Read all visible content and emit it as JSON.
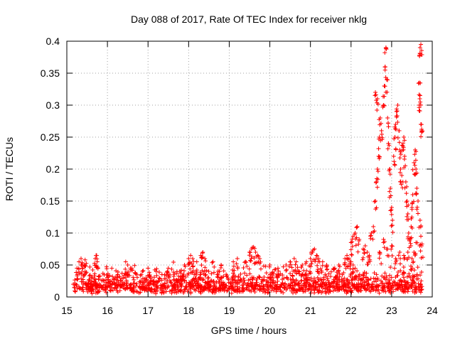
{
  "chart_data": {
    "type": "scatter",
    "title": "Day 088 of 2017, Rate Of TEC Index for receiver nklg",
    "xlabel": "GPS time / hours",
    "ylabel": "ROTI / TECUs",
    "xlim": [
      15,
      24
    ],
    "ylim": [
      0,
      0.4
    ],
    "xticks": [
      15,
      16,
      17,
      18,
      19,
      20,
      21,
      22,
      23,
      24
    ],
    "yticks": [
      0,
      0.05,
      0.1,
      0.15,
      0.2,
      0.25,
      0.3,
      0.35,
      0.4
    ],
    "xtick_labels": [
      "15",
      "16",
      "17",
      "18",
      "19",
      "20",
      "21",
      "22",
      "23",
      "24"
    ],
    "ytick_labels": [
      "0",
      "0.05",
      "0.1",
      "0.15",
      "0.2",
      "0.25",
      "0.3",
      "0.35",
      "0.4"
    ],
    "grid": true,
    "marker": "+",
    "series": [
      {
        "name": "ROTI",
        "color": "#ff0000",
        "x_range": [
          15.15,
          23.75
        ],
        "background_band": [
          0.005,
          0.045
        ],
        "points": [
          [
            15.25,
            0.045
          ],
          [
            15.3,
            0.055
          ],
          [
            15.35,
            0.06
          ],
          [
            15.4,
            0.05
          ],
          [
            15.45,
            0.058
          ],
          [
            15.7,
            0.06
          ],
          [
            15.72,
            0.065
          ],
          [
            15.75,
            0.055
          ],
          [
            16.45,
            0.055
          ],
          [
            16.5,
            0.05
          ],
          [
            16.6,
            0.045
          ],
          [
            17.0,
            0.045
          ],
          [
            17.2,
            0.04
          ],
          [
            17.5,
            0.045
          ],
          [
            17.9,
            0.05
          ],
          [
            18.0,
            0.06
          ],
          [
            18.05,
            0.065
          ],
          [
            18.1,
            0.06
          ],
          [
            18.2,
            0.055
          ],
          [
            18.3,
            0.065
          ],
          [
            18.35,
            0.07
          ],
          [
            18.4,
            0.06
          ],
          [
            18.6,
            0.055
          ],
          [
            18.8,
            0.05
          ],
          [
            19.1,
            0.055
          ],
          [
            19.2,
            0.06
          ],
          [
            19.4,
            0.055
          ],
          [
            19.5,
            0.07
          ],
          [
            19.55,
            0.075
          ],
          [
            19.6,
            0.078
          ],
          [
            19.65,
            0.07
          ],
          [
            19.7,
            0.065
          ],
          [
            19.75,
            0.06
          ],
          [
            20.0,
            0.05
          ],
          [
            20.2,
            0.045
          ],
          [
            20.4,
            0.05
          ],
          [
            20.5,
            0.055
          ],
          [
            20.6,
            0.06
          ],
          [
            20.65,
            0.055
          ],
          [
            20.8,
            0.05
          ],
          [
            20.9,
            0.055
          ],
          [
            21.0,
            0.06
          ],
          [
            21.05,
            0.07
          ],
          [
            21.1,
            0.075
          ],
          [
            21.15,
            0.065
          ],
          [
            21.2,
            0.06
          ],
          [
            21.3,
            0.055
          ],
          [
            21.4,
            0.05
          ],
          [
            21.6,
            0.045
          ],
          [
            21.7,
            0.05
          ],
          [
            21.85,
            0.06
          ],
          [
            21.9,
            0.065
          ],
          [
            21.95,
            0.06
          ],
          [
            22.0,
            0.055
          ],
          [
            22.05,
            0.05
          ],
          [
            22.1,
            0.045
          ],
          [
            22.0,
            0.085
          ],
          [
            22.05,
            0.095
          ],
          [
            22.1,
            0.1
          ],
          [
            22.15,
            0.11
          ],
          [
            22.2,
            0.09
          ],
          [
            22.3,
            0.075
          ],
          [
            22.35,
            0.08
          ],
          [
            22.4,
            0.07
          ],
          [
            22.45,
            0.065
          ],
          [
            22.5,
            0.1
          ],
          [
            22.55,
            0.11
          ],
          [
            22.6,
            0.15
          ],
          [
            22.62,
            0.18
          ],
          [
            22.65,
            0.2
          ],
          [
            22.68,
            0.22
          ],
          [
            22.7,
            0.25
          ],
          [
            22.72,
            0.28
          ],
          [
            22.6,
            0.32
          ],
          [
            22.65,
            0.31
          ],
          [
            22.75,
            0.26
          ],
          [
            22.8,
            0.3
          ],
          [
            22.82,
            0.33
          ],
          [
            22.84,
            0.36
          ],
          [
            22.86,
            0.39
          ],
          [
            22.88,
            0.34
          ],
          [
            22.9,
            0.28
          ],
          [
            22.92,
            0.24
          ],
          [
            22.95,
            0.2
          ],
          [
            22.97,
            0.17
          ],
          [
            23.0,
            0.14
          ],
          [
            23.02,
            0.12
          ],
          [
            23.05,
            0.22
          ],
          [
            23.08,
            0.25
          ],
          [
            23.1,
            0.27
          ],
          [
            23.12,
            0.29
          ],
          [
            23.15,
            0.3
          ],
          [
            23.18,
            0.26
          ],
          [
            23.2,
            0.23
          ],
          [
            23.22,
            0.2
          ],
          [
            23.25,
            0.19
          ],
          [
            23.28,
            0.24
          ],
          [
            23.3,
            0.25
          ],
          [
            23.32,
            0.22
          ],
          [
            23.35,
            0.18
          ],
          [
            23.38,
            0.15
          ],
          [
            23.4,
            0.13
          ],
          [
            23.42,
            0.1
          ],
          [
            23.45,
            0.09
          ],
          [
            23.48,
            0.11
          ],
          [
            23.5,
            0.14
          ],
          [
            23.52,
            0.16
          ],
          [
            23.55,
            0.21
          ],
          [
            23.58,
            0.23
          ],
          [
            23.6,
            0.2
          ],
          [
            23.62,
            0.17
          ],
          [
            23.65,
            0.15
          ],
          [
            23.68,
            0.3
          ],
          [
            23.7,
            0.39
          ],
          [
            23.72,
            0.395
          ],
          [
            23.68,
            0.335
          ],
          [
            23.7,
            0.315
          ],
          [
            23.72,
            0.27
          ],
          [
            23.74,
            0.26
          ],
          [
            23.7,
            0.12
          ],
          [
            23.72,
            0.095
          ],
          [
            23.74,
            0.08
          ],
          [
            23.6,
            0.085
          ],
          [
            23.55,
            0.07
          ],
          [
            22.7,
            0.07
          ],
          [
            22.8,
            0.09
          ],
          [
            22.9,
            0.075
          ],
          [
            23.0,
            0.08
          ],
          [
            23.1,
            0.06
          ],
          [
            23.2,
            0.07
          ],
          [
            23.3,
            0.065
          ],
          [
            23.4,
            0.07
          ],
          [
            23.5,
            0.06
          ]
        ]
      }
    ]
  }
}
